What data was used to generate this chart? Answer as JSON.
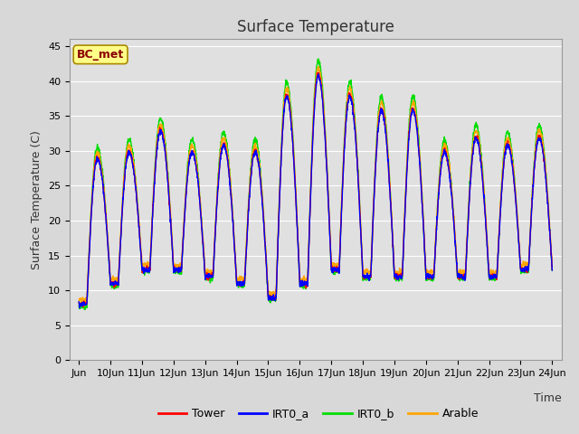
{
  "title": "Surface Temperature",
  "ylabel": "Surface Temperature (C)",
  "xlabel": "Time",
  "annotation": "BC_met",
  "ylim": [
    0,
    46
  ],
  "yticks": [
    0,
    5,
    10,
    15,
    20,
    25,
    30,
    35,
    40,
    45
  ],
  "series_colors": {
    "Tower": "#ff0000",
    "IRT0_a": "#0000ff",
    "IRT0_b": "#00dd00",
    "Arable": "#ffa500"
  },
  "fig_bg_color": "#d8d8d8",
  "axes_bg_color": "#e0e0e0",
  "grid_color": "#ffffff",
  "n_days": 15,
  "points_per_day": 144,
  "title_fontsize": 12,
  "label_fontsize": 9,
  "tick_fontsize": 8,
  "annotation_fontsize": 9,
  "legend_fontsize": 9,
  "linewidth": 1.0,
  "day_peaks": [
    29,
    30,
    33,
    30,
    31,
    30,
    38,
    41,
    38,
    36,
    36,
    30,
    32,
    31,
    32
  ],
  "day_lows": [
    8,
    11,
    13,
    13,
    12,
    11,
    9,
    11,
    13,
    12,
    12,
    12,
    12,
    12,
    13
  ]
}
